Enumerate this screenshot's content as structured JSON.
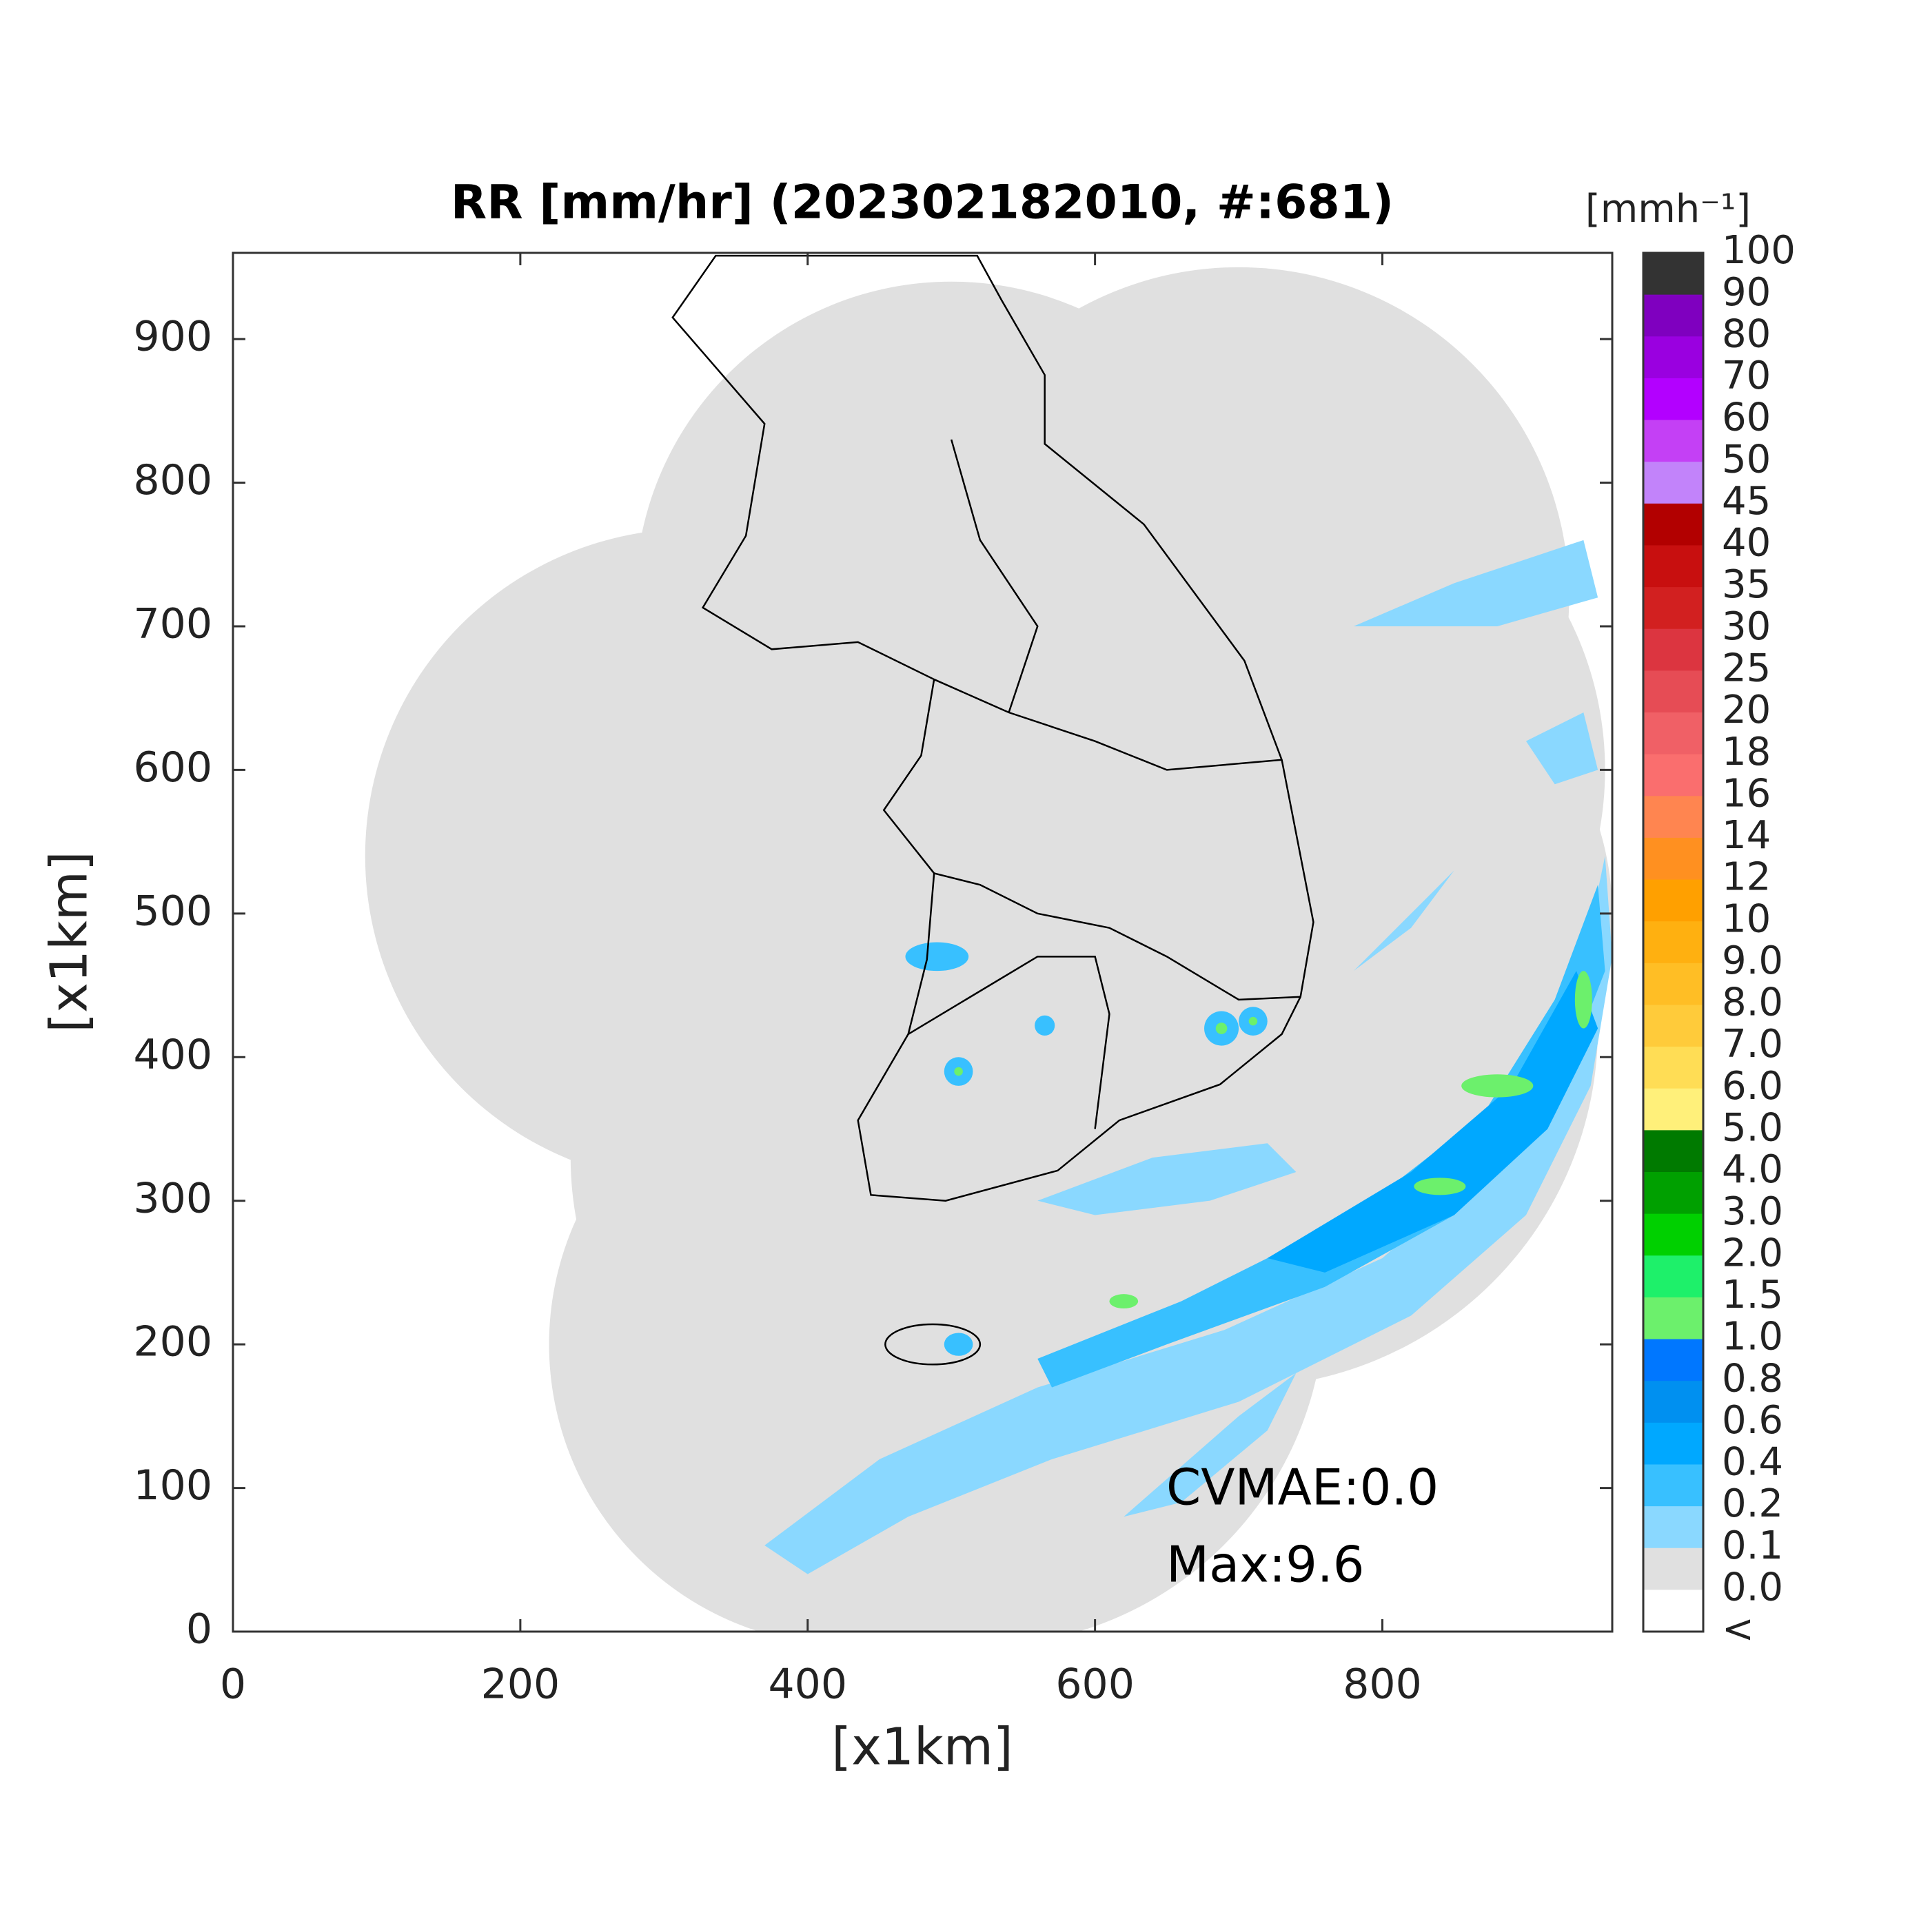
{
  "chart_data": {
    "type": "map",
    "title": "RR [mm/hr] (202302182010, #:681)",
    "xlabel": "[x1km]",
    "ylabel": "[x1km]",
    "xlim": [
      0,
      960
    ],
    "ylim": [
      0,
      960
    ],
    "xticks": [
      0,
      200,
      400,
      600,
      800
    ],
    "yticks": [
      0,
      100,
      200,
      300,
      400,
      500,
      600,
      700,
      800,
      900
    ],
    "annotations": [
      "CVMAE:0.0",
      "Max:9.6"
    ],
    "colorbar": {
      "unit": "[mmh⁻¹]",
      "labels": [
        "100",
        "90",
        "80",
        "70",
        "60",
        "50",
        "45",
        "40",
        "35",
        "30",
        "25",
        "20",
        "18",
        "16",
        "14",
        "12",
        "10",
        "9.0",
        "8.0",
        "7.0",
        "6.0",
        "5.0",
        "4.0",
        "3.0",
        "2.0",
        "1.5",
        "1.0",
        "0.8",
        "0.6",
        "0.4",
        "0.2",
        "0.1",
        "0.0",
        "<"
      ],
      "colors": [
        "#333333",
        "#7f00bf",
        "#9a00e0",
        "#b300ff",
        "#c440f5",
        "#c283fa",
        "#b20000",
        "#c80f0f",
        "#d22020",
        "#dc3540",
        "#e64c55",
        "#f06066",
        "#fa6e6e",
        "#ff8550",
        "#ff9020",
        "#ffa000",
        "#ffb010",
        "#ffbe25",
        "#ffcb3a",
        "#ffdd55",
        "#fff07a",
        "#007a00",
        "#00a000",
        "#00d000",
        "#1ef06a",
        "#6cf06c",
        "#0077ff",
        "#0090f0",
        "#00a8ff",
        "#38c0ff",
        "#8ad8ff",
        "#e0e0e0",
        "#ffffff"
      ]
    }
  }
}
